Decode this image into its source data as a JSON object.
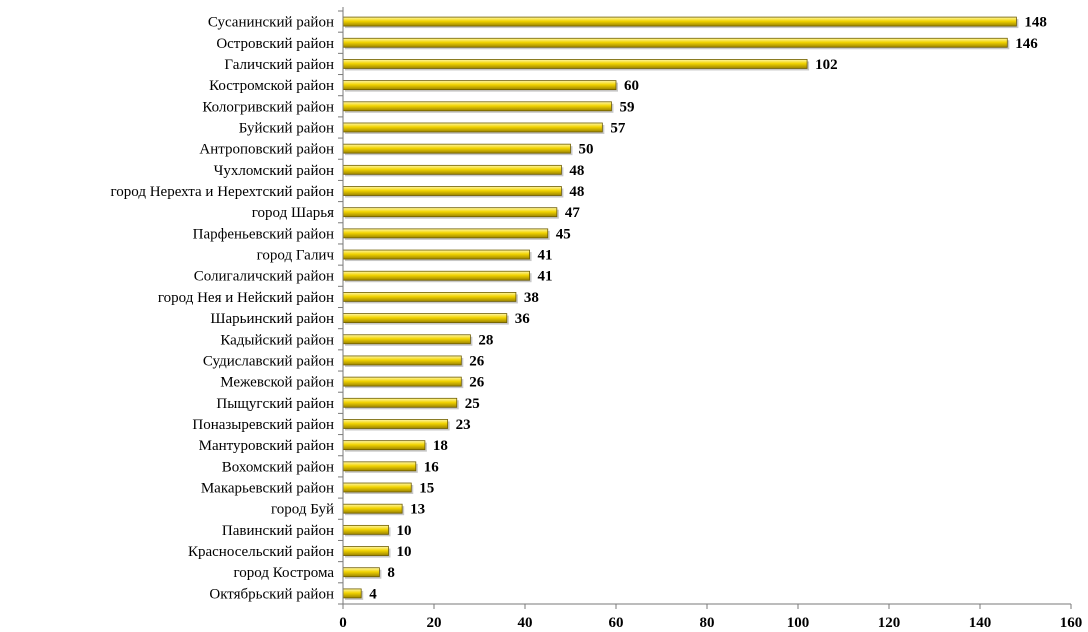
{
  "chart_data": {
    "type": "bar",
    "orientation": "horizontal",
    "title": "",
    "xlabel": "",
    "ylabel": "",
    "xlim": [
      0,
      160
    ],
    "xticks": [
      0,
      20,
      40,
      60,
      80,
      100,
      120,
      140,
      160
    ],
    "grid": false,
    "legend": "none",
    "bar_color": "#f2d400",
    "categories": [
      "Сусанинский район",
      "Островский район",
      "Галичский район",
      "Костромской район",
      "Кологривский район",
      "Буйский район",
      "Антроповский район",
      "Чухломский район",
      "город Нерехта и Нерехтский район",
      "город Шарья",
      "Парфеньевский район",
      "город Галич",
      "Солигаличский район",
      "город Нея и Нейский район",
      "Шарьинский район",
      "Кадыйский район",
      "Судиславский район",
      "Межевской район",
      "Пыщугский район",
      "Поназыревский район",
      "Мантуровский район",
      "Вохомский район",
      "Макарьевский район",
      "город Буй",
      "Павинский район",
      "Красносельский район",
      "город Кострома",
      "Октябрьский район"
    ],
    "values": [
      148,
      146,
      102,
      60,
      59,
      57,
      50,
      48,
      48,
      47,
      45,
      41,
      41,
      38,
      36,
      28,
      26,
      26,
      25,
      23,
      18,
      16,
      15,
      13,
      10,
      10,
      8,
      4
    ]
  }
}
